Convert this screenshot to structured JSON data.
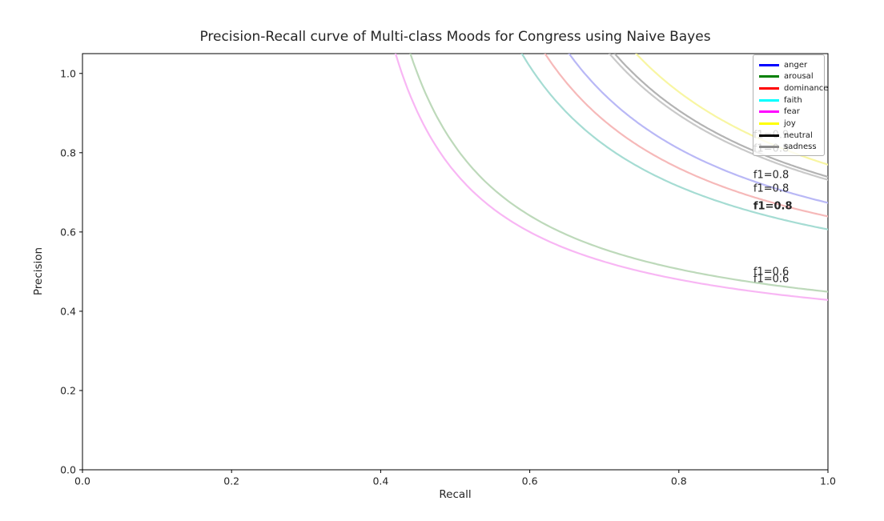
{
  "chart_data": {
    "type": "line",
    "title": "Precision-Recall curve of Multi-class Moods for Congress using Naive Bayes",
    "xlabel": "Recall",
    "ylabel": "Precision",
    "xlim": [
      0.0,
      1.0
    ],
    "ylim": [
      0.0,
      1.05
    ],
    "x_ticks": [
      0.0,
      0.2,
      0.4,
      0.6,
      0.8,
      1.0
    ],
    "y_ticks": [
      0.0,
      0.2,
      0.4,
      0.6,
      0.8,
      1.0
    ],
    "grid": false,
    "curve_type": "iso-f1",
    "curve_formula": "precision = f1 * recall / (2 * recall - f1)",
    "legend": {
      "position": "upper-right",
      "entries": [
        {
          "label": "anger",
          "color": "#0000ff"
        },
        {
          "label": "arousal",
          "color": "#008000"
        },
        {
          "label": "dominance",
          "color": "#ff0000"
        },
        {
          "label": "faith",
          "color": "#00ffff"
        },
        {
          "label": "fear",
          "color": "#ff00ff"
        },
        {
          "label": "joy",
          "color": "#ffff00"
        },
        {
          "label": "neutral",
          "color": "#000000"
        },
        {
          "label": "sadness",
          "color": "#8c8c8c"
        }
      ]
    },
    "series": [
      {
        "name": "fear",
        "f1": 0.6,
        "color": "#f8b6f4"
      },
      {
        "name": "arousal",
        "f1": 0.62,
        "color": "#bdd9ba"
      },
      {
        "name": "faith",
        "f1": 0.755,
        "color": "#a5dcd3"
      },
      {
        "name": "dominance",
        "f1": 0.78,
        "color": "#f6b9b9"
      },
      {
        "name": "anger",
        "f1": 0.805,
        "color": "#b9b8f6"
      },
      {
        "name": "sadness",
        "f1": 0.845,
        "color": "#c9c9c9"
      },
      {
        "name": "neutral",
        "f1": 0.85,
        "color": "#b3b3b3"
      },
      {
        "name": "joy",
        "f1": 0.87,
        "color": "#f8f6a2"
      }
    ],
    "annotations": [
      {
        "text": "f1=0.9",
        "x": 0.9,
        "y": 0.846,
        "color": "#3d3d3d",
        "bold": false
      },
      {
        "text": "f1=0.8",
        "x": 0.9,
        "y": 0.812,
        "color": "#3d3d3d",
        "bold": false
      },
      {
        "text": "f1=0.8",
        "x": 0.9,
        "y": 0.745,
        "color": "#3d3d3d",
        "bold": false
      },
      {
        "text": "f1=0.8",
        "x": 0.9,
        "y": 0.711,
        "color": "#3d3d3d",
        "bold": false
      },
      {
        "text": "f1=0.8",
        "x": 0.9,
        "y": 0.666,
        "color": "#141414",
        "bold": true
      },
      {
        "text": "f1=0.6",
        "x": 0.9,
        "y": 0.501,
        "color": "#3d3d3d",
        "bold": false
      },
      {
        "text": "f1=0.6",
        "x": 0.9,
        "y": 0.483,
        "color": "#3d3d3d",
        "bold": false
      }
    ]
  }
}
